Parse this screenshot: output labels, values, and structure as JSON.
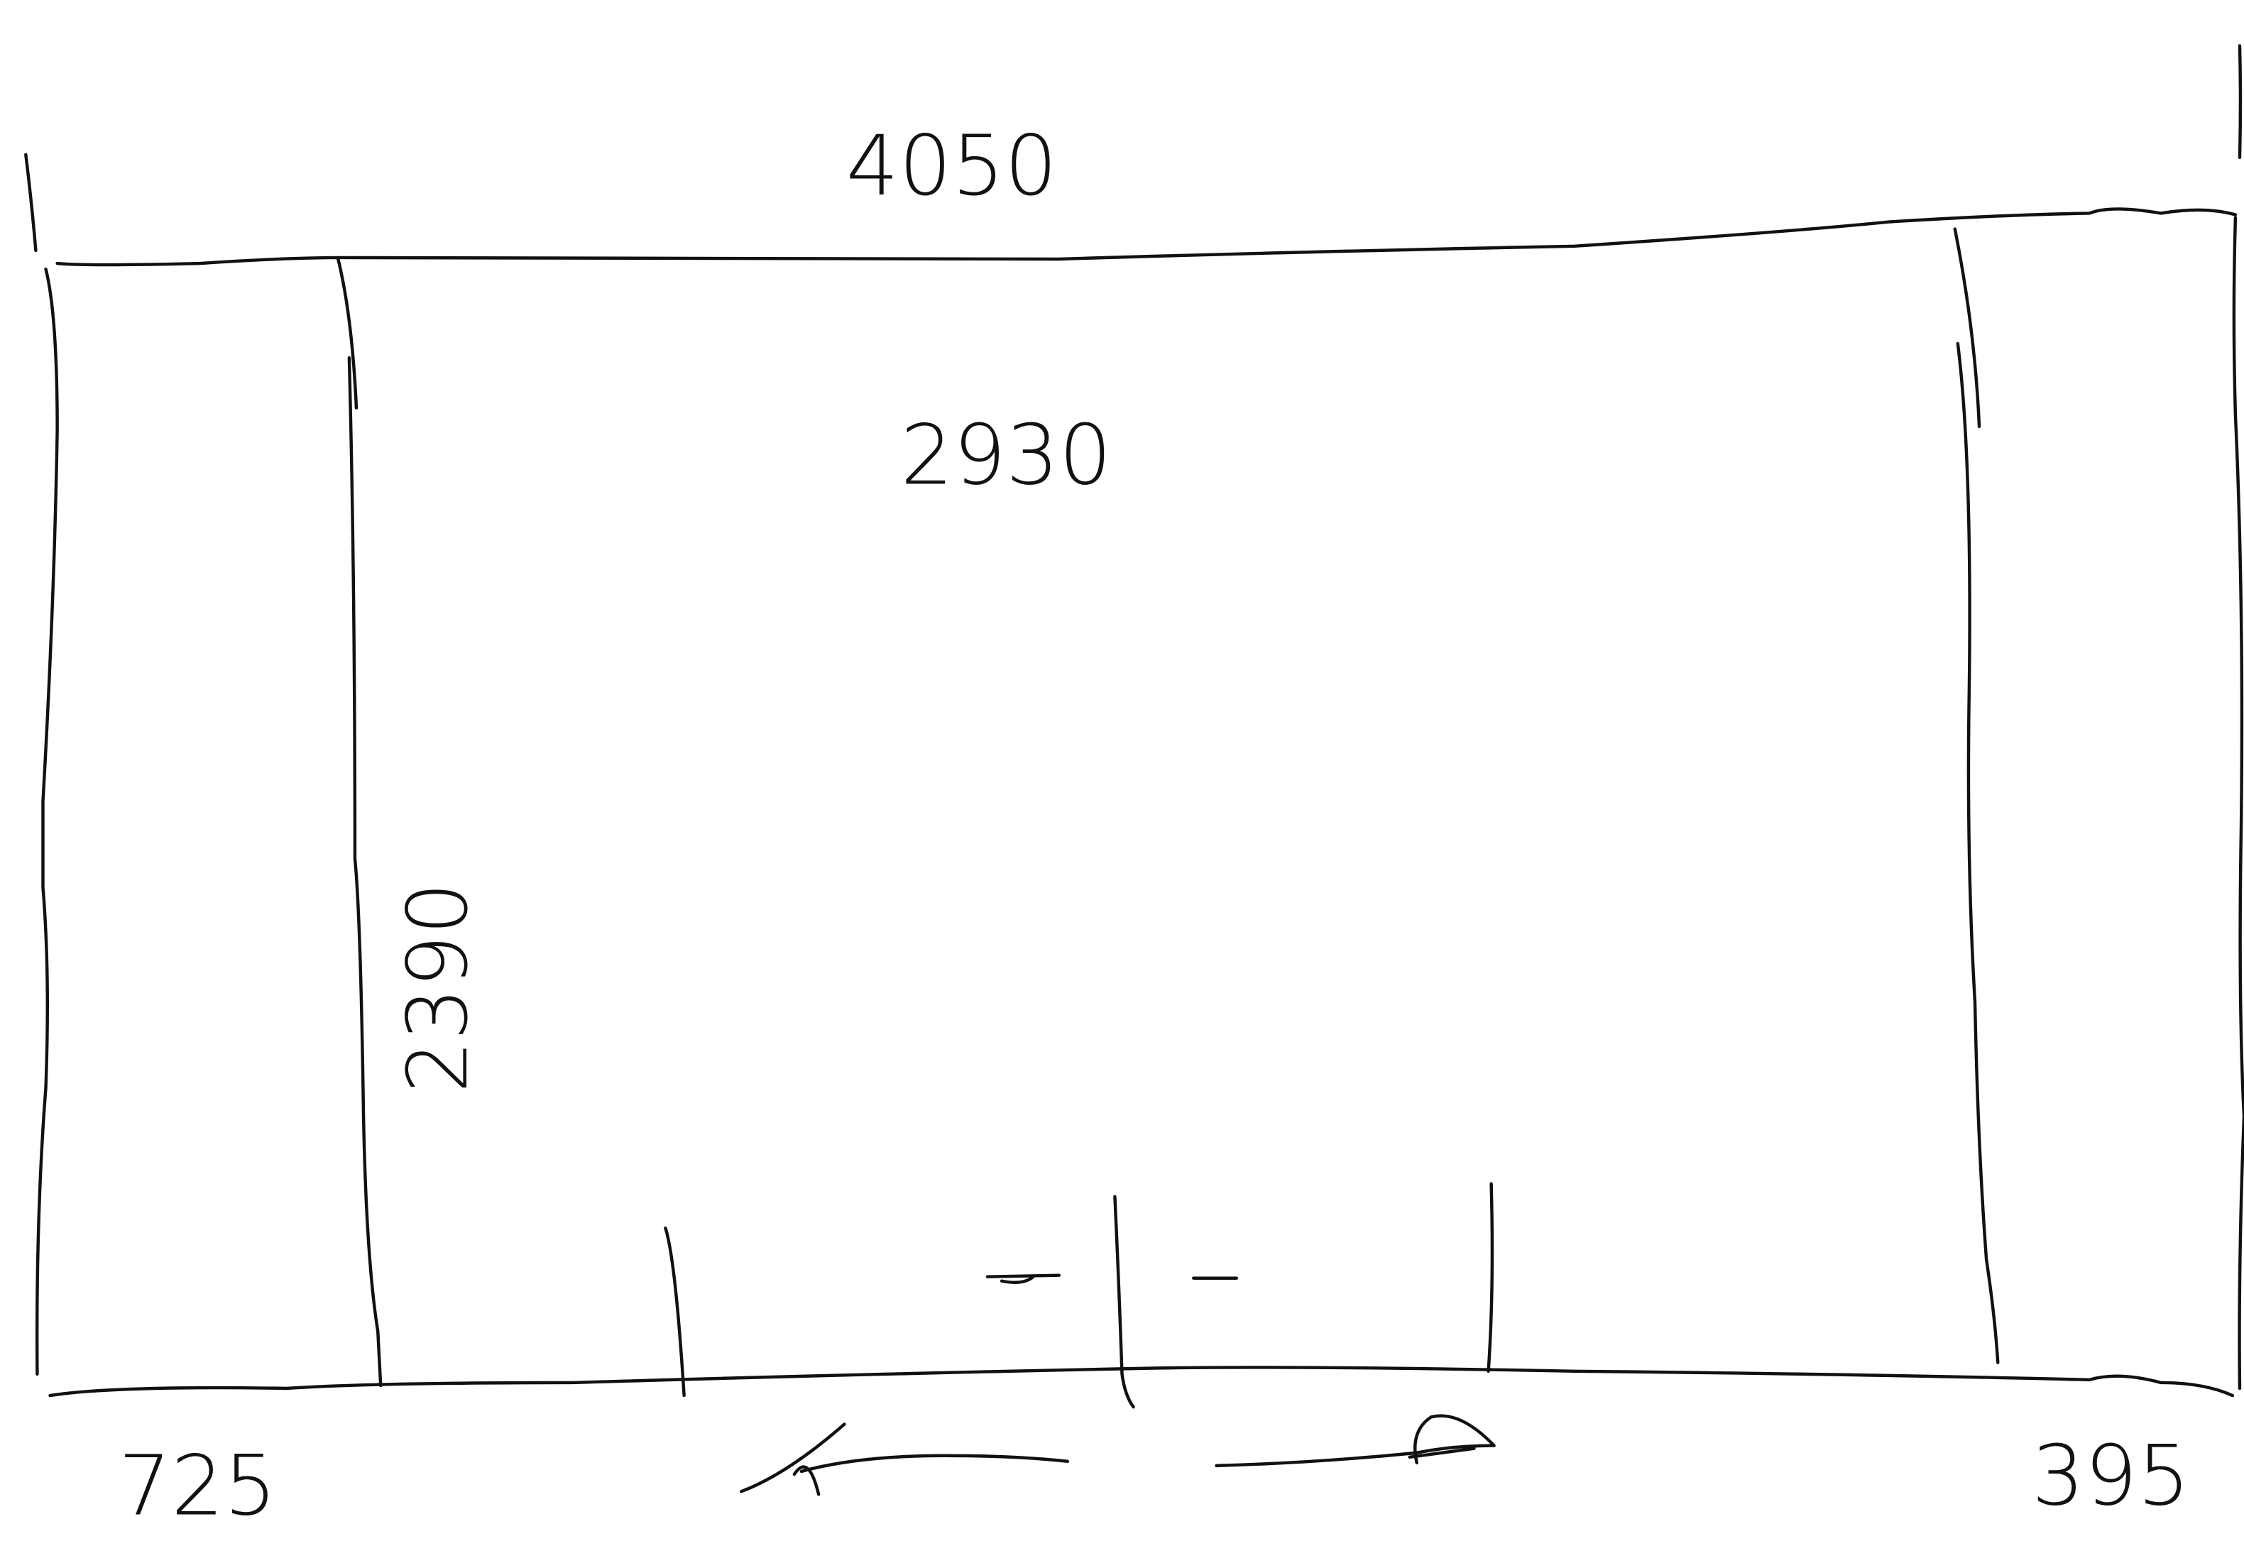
{
  "dimensions": {
    "overall_width": "4050",
    "inner_width": "2930",
    "height": "2390",
    "left_width": "725",
    "right_width": "395"
  }
}
